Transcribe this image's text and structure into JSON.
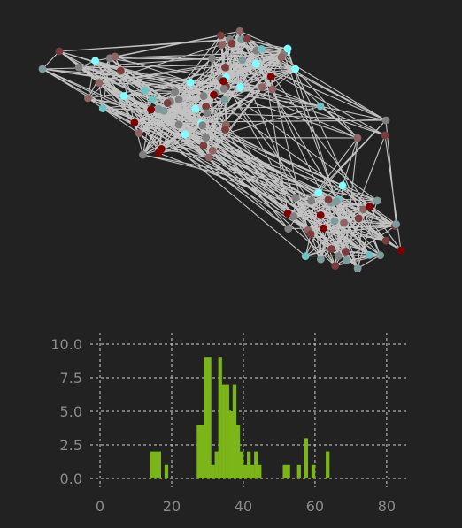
{
  "chart_data": [
    {
      "type": "network",
      "node_colors": [
        "#7fffff",
        "#6fc2c2",
        "#7f9a9a",
        "#808080",
        "#8e6464",
        "#7a3c3c",
        "#800000"
      ],
      "edge_color": "#d4d4d4",
      "clusters": 4
    },
    {
      "type": "bar",
      "bar_color": "#7cb518",
      "grid": true,
      "xlim": [
        0,
        82
      ],
      "ylim": [
        0,
        10
      ],
      "xticks": [
        "0",
        "20",
        "40",
        "60",
        "80"
      ],
      "yticks": [
        "0.0",
        "2.5",
        "5.0",
        "7.5",
        "10.0"
      ],
      "bars": [
        {
          "x": 14,
          "value": 2
        },
        {
          "x": 15,
          "value": 2
        },
        {
          "x": 16,
          "value": 2
        },
        {
          "x": 18,
          "value": 1
        },
        {
          "x": 27,
          "value": 4
        },
        {
          "x": 28,
          "value": 4
        },
        {
          "x": 29,
          "value": 9
        },
        {
          "x": 30,
          "value": 9
        },
        {
          "x": 31,
          "value": 1
        },
        {
          "x": 32,
          "value": 2
        },
        {
          "x": 33,
          "value": 9
        },
        {
          "x": 34,
          "value": 7
        },
        {
          "x": 35,
          "value": 7
        },
        {
          "x": 36,
          "value": 5
        },
        {
          "x": 37,
          "value": 7
        },
        {
          "x": 38,
          "value": 4
        },
        {
          "x": 39,
          "value": 2
        },
        {
          "x": 40,
          "value": 1
        },
        {
          "x": 41,
          "value": 2
        },
        {
          "x": 42,
          "value": 1
        },
        {
          "x": 43,
          "value": 2
        },
        {
          "x": 44,
          "value": 1
        },
        {
          "x": 51,
          "value": 1
        },
        {
          "x": 52,
          "value": 1
        },
        {
          "x": 55,
          "value": 1
        },
        {
          "x": 57,
          "value": 3
        },
        {
          "x": 59,
          "value": 1
        },
        {
          "x": 63,
          "value": 2
        }
      ]
    }
  ]
}
